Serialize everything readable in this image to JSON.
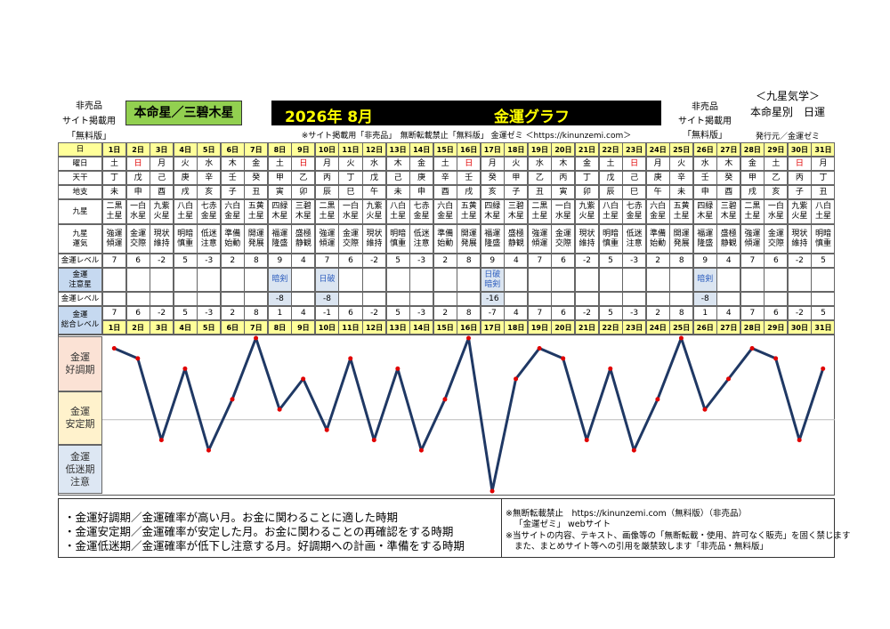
{
  "header": {
    "left_notes": [
      "非売品",
      "サイト掲載用",
      "「無料版」"
    ],
    "honmei": "本命星／三碧木星",
    "month": "2026年 8月",
    "title": "金運グラフ",
    "right_notes": [
      "非売品",
      "サイト掲載用",
      "「無料版」"
    ],
    "right_title": [
      "＜九星気学＞",
      "本命星別　日運"
    ],
    "publisher": "発行元／金運ゼミ",
    "subtitle": "※サイト掲載用「非売品」　無断転載禁止「無料版」 金運ゼミ ＜https://kinunzemi.com＞"
  },
  "table": {
    "labels": [
      "日",
      "曜日",
      "天干",
      "地支",
      "九星",
      "九星\n運気",
      "金運レベル",
      "金運\n注意星",
      "金運レベル",
      "金運\n総合レベル"
    ],
    "days": [
      "1日",
      "2日",
      "3日",
      "4日",
      "5日",
      "6日",
      "7日",
      "8日",
      "9日",
      "10日",
      "11日",
      "12日",
      "13日",
      "14日",
      "15日",
      "16日",
      "17日",
      "18日",
      "19日",
      "20日",
      "21日",
      "22日",
      "23日",
      "24日",
      "25日",
      "26日",
      "27日",
      "28日",
      "29日",
      "30日",
      "31日"
    ],
    "weekdays": [
      "土",
      "日",
      "月",
      "火",
      "水",
      "木",
      "金",
      "土",
      "日",
      "月",
      "火",
      "水",
      "木",
      "金",
      "土",
      "日",
      "月",
      "火",
      "水",
      "木",
      "金",
      "土",
      "日",
      "月",
      "火",
      "水",
      "木",
      "金",
      "土",
      "日",
      "月"
    ],
    "weekday_color": {
      "日": "#e00000"
    },
    "kan": [
      "丁",
      "戊",
      "己",
      "庚",
      "辛",
      "壬",
      "癸",
      "甲",
      "乙",
      "丙",
      "丁",
      "戊",
      "己",
      "庚",
      "辛",
      "壬",
      "癸",
      "甲",
      "乙",
      "丙",
      "丁",
      "戊",
      "己",
      "庚",
      "辛",
      "壬",
      "癸",
      "甲",
      "乙",
      "丙",
      "丁"
    ],
    "shi": [
      "未",
      "申",
      "酉",
      "戌",
      "亥",
      "子",
      "丑",
      "寅",
      "卯",
      "辰",
      "巳",
      "午",
      "未",
      "申",
      "酉",
      "戌",
      "亥",
      "子",
      "丑",
      "寅",
      "卯",
      "辰",
      "巳",
      "午",
      "未",
      "申",
      "酉",
      "戌",
      "亥",
      "子",
      "丑"
    ],
    "kyusei": [
      "二黒土星",
      "一白水星",
      "九紫火星",
      "八白土星",
      "七赤金星",
      "六白金星",
      "五黄土星",
      "四緑木星",
      "三碧木星",
      "二黒土星",
      "一白水星",
      "九紫火星",
      "八白土星",
      "七赤金星",
      "六白金星",
      "五黄土星",
      "四緑木星",
      "三碧木星",
      "二黒土星",
      "一白水星",
      "九紫火星",
      "八白土星",
      "七赤金星",
      "六白金星",
      "五黄土星",
      "四緑木星",
      "三碧木星",
      "二黒土星",
      "一白水星",
      "九紫火星",
      "八白土星"
    ],
    "unki": [
      "強運傾運",
      "金運交際",
      "現状維持",
      "明暗慎重",
      "低迷注意",
      "準備始動",
      "開運発展",
      "福運隆盛",
      "盛極静観",
      "強運傾運",
      "金運交際",
      "現状維持",
      "明暗慎重",
      "低迷注意",
      "準備始動",
      "開運発展",
      "福運隆盛",
      "盛極静観",
      "強運傾運",
      "金運交際",
      "現状維持",
      "明暗慎重",
      "低迷注意",
      "準備始動",
      "開運発展",
      "福運隆盛",
      "盛極静観",
      "強運傾運",
      "金運交際",
      "現状維持",
      "明暗慎重"
    ],
    "level": [
      7,
      6,
      -2,
      5,
      -3,
      2,
      8,
      9,
      4,
      7,
      6,
      -2,
      5,
      -3,
      2,
      8,
      9,
      4,
      7,
      6,
      -2,
      5,
      -3,
      2,
      8,
      9,
      4,
      7,
      6,
      -2,
      5
    ],
    "caution": [
      null,
      null,
      null,
      null,
      null,
      null,
      null,
      "暗剣",
      null,
      "日破",
      null,
      null,
      null,
      null,
      null,
      null,
      "日破暗剣",
      null,
      null,
      null,
      null,
      null,
      null,
      null,
      null,
      "暗剣",
      null,
      null,
      null,
      null,
      null
    ],
    "caution_level": [
      null,
      null,
      null,
      null,
      null,
      null,
      null,
      -8,
      null,
      -8,
      null,
      null,
      null,
      null,
      null,
      null,
      -16,
      null,
      null,
      null,
      null,
      null,
      null,
      null,
      null,
      -8,
      null,
      null,
      null,
      null,
      null
    ],
    "total": [
      7,
      6,
      -2,
      5,
      -3,
      2,
      8,
      1,
      4,
      -1,
      6,
      -2,
      5,
      -3,
      2,
      8,
      -7,
      4,
      7,
      6,
      -2,
      5,
      -3,
      2,
      8,
      1,
      4,
      7,
      6,
      -2,
      5
    ]
  },
  "chart": {
    "zones": [
      "金運\n好調期",
      "金運\n安定期",
      "金運\n低迷期\n注意"
    ],
    "line_color": "#1f3864",
    "point_color": "#e00000"
  },
  "footer": {
    "legend": [
      "・金運好調期／金運確率が高い月。お金に関わることに適した時期",
      "・金運安定期／金運確率が安定した月。お金に関わることの再確認をする時期",
      "・金運低迷期／金運確率が低下し注意する月。好調期への計画・準備をする時期"
    ],
    "notes": [
      "※無断転載禁止　https://kinunzemi.com（無料版）（非売品）",
      "「金運ゼミ」 webサイト",
      "※当サイトの内容、テキスト、画像等の「無断転載・使用、許可なく販売」を固く禁じます",
      "また、まとめサイト等への引用を厳禁致します「非売品・無料版」"
    ]
  }
}
